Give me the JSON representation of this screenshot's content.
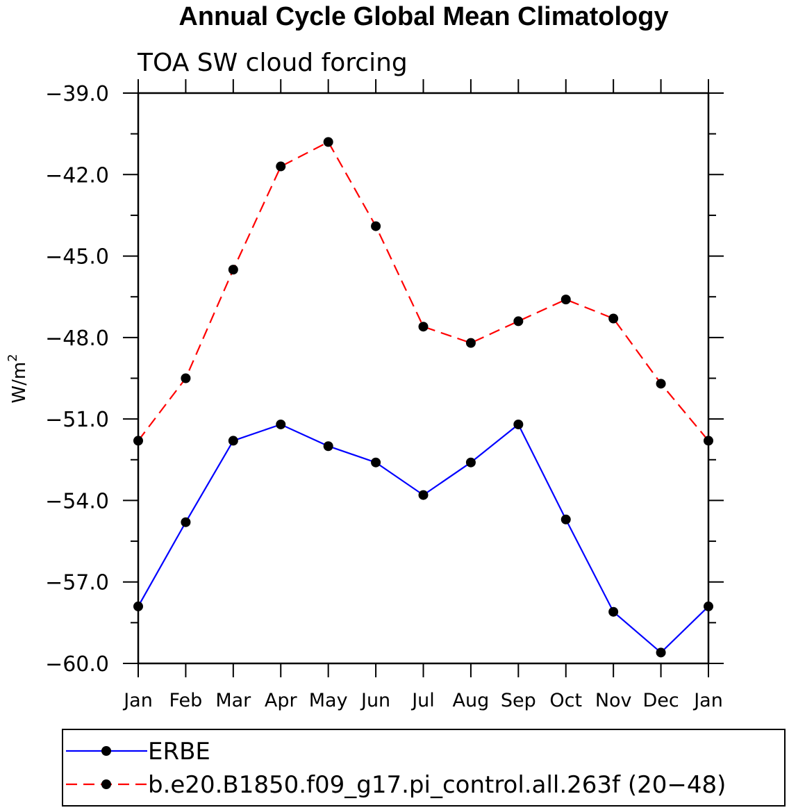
{
  "chart_data": {
    "type": "line",
    "title": "Annual Cycle Global Mean Climatology",
    "subtitle": "TOA SW cloud forcing",
    "ylabel": "W/m",
    "ylabel_sup": "2",
    "ylim": [
      -60.0,
      -39.0
    ],
    "yticks": [
      -39.0,
      -42.0,
      -45.0,
      -48.0,
      -51.0,
      -54.0,
      -57.0,
      -60.0
    ],
    "ytick_labels": [
      "−39.0",
      "−42.0",
      "−45.0",
      "−48.0",
      "−51.0",
      "−54.0",
      "−57.0",
      "−60.0"
    ],
    "categories": [
      "Jan",
      "Feb",
      "Mar",
      "Apr",
      "May",
      "Jun",
      "Jul",
      "Aug",
      "Sep",
      "Oct",
      "Nov",
      "Dec",
      "Jan"
    ],
    "series": [
      {
        "name": "ERBE",
        "color": "#0000ff",
        "dash": "solid",
        "values": [
          -57.9,
          -54.8,
          -51.8,
          -51.2,
          -52.0,
          -52.6,
          -53.8,
          -52.6,
          -51.2,
          -54.7,
          -58.1,
          -59.6,
          -57.9
        ]
      },
      {
        "name": "b.e20.B1850.f09_g17.pi_control.all.263f (20−48)",
        "color": "#ff0000",
        "dash": "dashed",
        "values": [
          -51.8,
          -49.5,
          -45.5,
          -41.7,
          -40.8,
          -43.9,
          -47.6,
          -48.2,
          -47.4,
          -46.6,
          -47.3,
          -49.7,
          -51.8
        ]
      }
    ],
    "legend_position": "bottom",
    "grid": false
  }
}
